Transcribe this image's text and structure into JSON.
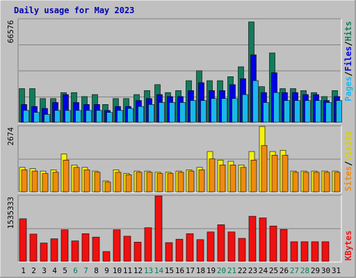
{
  "chart_data": [
    {
      "type": "bar",
      "title": "Daily usage for May 2023",
      "categories": [
        "1",
        "2",
        "3",
        "4",
        "5",
        "6",
        "7",
        "8",
        "9",
        "10",
        "11",
        "12",
        "13",
        "14",
        "15",
        "16",
        "17",
        "18",
        "19",
        "20",
        "21",
        "22",
        "23",
        "24",
        "25",
        "26",
        "27",
        "28",
        "29",
        "30",
        "31"
      ],
      "weekend_days": [
        "6",
        "7",
        "13",
        "14",
        "20",
        "21",
        "27",
        "28"
      ],
      "y_tick_label": "66576",
      "ylim": [
        0,
        66576
      ],
      "legend": [
        "Pages",
        "Files",
        "Hits"
      ],
      "series": [
        {
          "name": "Hits",
          "color": "#127c5c",
          "values": [
            21824,
            21824,
            15403,
            15403,
            19261,
            19261,
            16688,
            17974,
            11554,
            15403,
            15403,
            17974,
            20543,
            24402,
            19261,
            20543,
            26968,
            33386,
            26968,
            26968,
            29536,
            35954,
            65000,
            23117,
            44941,
            21824,
            21824,
            20543,
            19261,
            16688,
            20543
          ]
        },
        {
          "name": "Files",
          "color": "#0000e6",
          "values": [
            11554,
            10269,
            8988,
            12834,
            17974,
            12834,
            11554,
            11554,
            7706,
            10269,
            10269,
            14119,
            15403,
            17974,
            16688,
            16688,
            20543,
            25684,
            20543,
            20543,
            24402,
            28250,
            43665,
            19261,
            32103,
            19261,
            19261,
            17974,
            17974,
            14119,
            16688
          ]
        },
        {
          "name": "Pages",
          "color": "#1ab8ec",
          "values": [
            7706,
            6422,
            5137,
            7706,
            7706,
            7706,
            7706,
            7706,
            6422,
            7706,
            8988,
            10269,
            11554,
            12834,
            12834,
            12834,
            14119,
            14119,
            15403,
            15403,
            15403,
            17974,
            27000,
            12834,
            19261,
            14119,
            14119,
            14119,
            14119,
            12834,
            14119
          ]
        }
      ]
    },
    {
      "type": "bar",
      "y_tick_label": "2674",
      "ylim": [
        0,
        2674
      ],
      "legend": [
        "Sites",
        "Visits"
      ],
      "series": [
        {
          "name": "Visits",
          "color": "#f4f010",
          "values": [
            1000,
            950,
            850,
            900,
            1550,
            1100,
            1000,
            850,
            450,
            900,
            750,
            850,
            850,
            800,
            800,
            850,
            900,
            1000,
            1650,
            1300,
            1250,
            1100,
            1650,
            2674,
            1650,
            1700,
            850,
            850,
            850,
            850,
            850,
            1000
          ]
        },
        {
          "name": "Sites",
          "color": "#f08a10",
          "values": [
            900,
            850,
            750,
            800,
            1300,
            1000,
            900,
            800,
            400,
            800,
            700,
            800,
            800,
            750,
            750,
            800,
            850,
            900,
            1350,
            1100,
            1100,
            1000,
            1300,
            1900,
            1500,
            1500,
            800,
            800,
            800,
            800,
            800,
            900
          ]
        }
      ]
    },
    {
      "type": "bar",
      "y_tick_label": "1535333",
      "ylim": [
        0,
        1535333
      ],
      "legend": [
        "KBytes"
      ],
      "series": [
        {
          "name": "KBytes",
          "color": "#f01010",
          "values": [
            1000000,
            640000,
            430000,
            530000,
            740000,
            480000,
            650000,
            570000,
            230000,
            740000,
            590000,
            450000,
            790000,
            1535333,
            440000,
            520000,
            650000,
            510000,
            690000,
            860000,
            690000,
            540000,
            1060000,
            1020000,
            830000,
            750000,
            460000,
            460000,
            460000,
            460000
          ]
        }
      ]
    }
  ]
}
